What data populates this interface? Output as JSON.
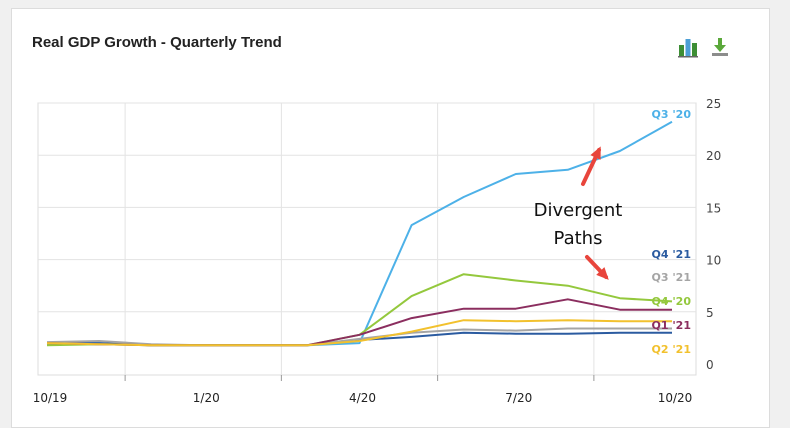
{
  "header": {
    "title": "Real GDP Growth - Quarterly Trend"
  },
  "toolbar": {
    "chart_type_icon": "bar-chart-icon",
    "download_icon": "download-icon"
  },
  "annotation": {
    "line1": "Divergent",
    "line2": "Paths",
    "arrow_color": "#e8453c"
  },
  "chart_data": {
    "type": "line",
    "title": "Real GDP Growth - Quarterly Trend",
    "xlabel": "",
    "ylabel": "",
    "x": [
      "10/19",
      "11/19",
      "12/19",
      "1/20",
      "2/20",
      "3/20",
      "4/20",
      "5/20",
      "6/20",
      "7/20",
      "8/20",
      "9/20",
      "10/20"
    ],
    "x_tick_labels": [
      "10/19",
      "1/20",
      "4/20",
      "7/20",
      "10/20"
    ],
    "y_ticks": [
      0,
      5,
      10,
      15,
      20,
      25
    ],
    "ylim": [
      0,
      25
    ],
    "grid": true,
    "y_axis_side": "right",
    "series": [
      {
        "name": "Q3 '20",
        "color": "#4db1e8",
        "values": [
          2.0,
          2.0,
          1.8,
          1.8,
          1.8,
          1.8,
          2.0,
          13.3,
          16.0,
          18.2,
          18.6,
          20.4,
          23.2
        ]
      },
      {
        "name": "Q4 '21",
        "color": "#2b5ba0",
        "values": [
          2.0,
          2.0,
          1.8,
          1.8,
          1.8,
          1.8,
          2.3,
          2.6,
          3.0,
          2.9,
          2.9,
          3.0,
          3.0
        ]
      },
      {
        "name": "Q3 '21",
        "color": "#a5a5a5",
        "values": [
          2.1,
          2.2,
          1.9,
          1.8,
          1.8,
          1.8,
          2.4,
          3.0,
          3.3,
          3.2,
          3.4,
          3.4,
          3.4
        ]
      },
      {
        "name": "Q4 '20",
        "color": "#94c83d",
        "values": [
          1.8,
          1.9,
          1.8,
          1.8,
          1.8,
          1.8,
          2.8,
          6.5,
          8.6,
          8.0,
          7.5,
          6.3,
          6.0
        ]
      },
      {
        "name": "Q1 '21",
        "color": "#8b2e5f",
        "values": [
          2.0,
          1.9,
          1.8,
          1.8,
          1.8,
          1.8,
          2.8,
          4.4,
          5.3,
          5.3,
          6.2,
          5.2,
          5.2
        ]
      },
      {
        "name": "Q2 '21",
        "color": "#f2c12e",
        "values": [
          2.0,
          1.9,
          1.8,
          1.8,
          1.8,
          1.8,
          2.2,
          3.1,
          4.2,
          4.1,
          4.2,
          4.1,
          4.1
        ]
      }
    ]
  }
}
